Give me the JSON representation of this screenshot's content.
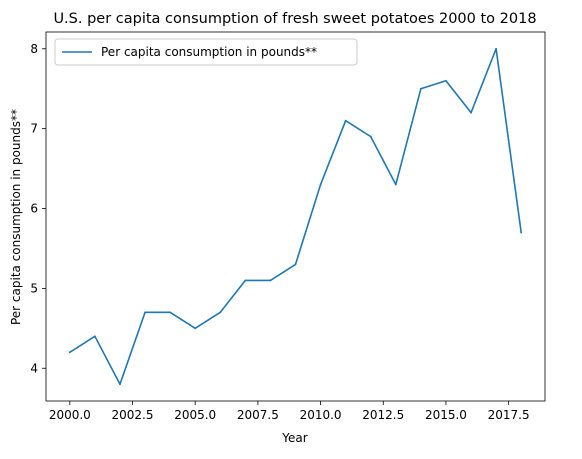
{
  "chart_data": {
    "type": "line",
    "title": "U.S. per capita consumption of fresh sweet potatoes 2000 to 2018",
    "xlabel": "Year",
    "ylabel": "Per capita consumption in pounds**",
    "xlim": [
      1999.05,
      2018.95
    ],
    "ylim": [
      3.59,
      8.21
    ],
    "xticks": [
      2000.0,
      2002.5,
      2005.0,
      2007.5,
      2010.0,
      2012.5,
      2015.0,
      2017.5
    ],
    "xtick_labels": [
      "2000.0",
      "2002.5",
      "2005.0",
      "2007.5",
      "2010.0",
      "2012.5",
      "2015.0",
      "2017.5"
    ],
    "yticks": [
      4,
      5,
      6,
      7,
      8
    ],
    "ytick_labels": [
      "4",
      "5",
      "6",
      "7",
      "8"
    ],
    "grid": false,
    "legend_position": "upper-left",
    "series": [
      {
        "name": "Per capita consumption in pounds**",
        "color": "#1f77b4",
        "x": [
          2000,
          2001,
          2002,
          2003,
          2004,
          2005,
          2006,
          2007,
          2008,
          2009,
          2010,
          2011,
          2012,
          2013,
          2014,
          2015,
          2016,
          2017,
          2018
        ],
        "values": [
          4.2,
          4.4,
          3.8,
          4.7,
          4.7,
          4.5,
          4.7,
          5.1,
          5.1,
          5.3,
          6.3,
          7.1,
          6.9,
          6.3,
          7.5,
          7.6,
          7.2,
          8.0,
          5.7
        ]
      }
    ]
  }
}
